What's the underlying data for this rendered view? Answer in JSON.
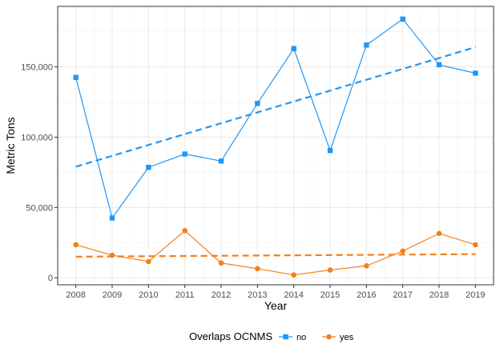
{
  "chart_data": {
    "type": "line",
    "x": [
      2008,
      2009,
      2010,
      2011,
      2012,
      2013,
      2014,
      2015,
      2016,
      2017,
      2018,
      2019
    ],
    "xlabel": "Year",
    "ylabel": "Metric Tons",
    "xlim": [
      2007.5,
      2019.5
    ],
    "ylim": [
      -5000,
      193000
    ],
    "yticks": [
      0,
      50000,
      100000,
      150000
    ],
    "ytick_labels": [
      "0",
      "50,000",
      "100,000",
      "150,000"
    ],
    "xtick_labels": [
      "2008",
      "2009",
      "2010",
      "2011",
      "2012",
      "2013",
      "2014",
      "2015",
      "2016",
      "2017",
      "2018",
      "2019"
    ],
    "grid": true,
    "legend": {
      "title": "Overlaps OCNMS",
      "position": "bottom",
      "entries": [
        "no",
        "yes"
      ]
    },
    "series": [
      {
        "name": "no",
        "color": "#2196F3",
        "marker": "square",
        "values": [
          142500,
          42500,
          78500,
          88000,
          83000,
          124000,
          163000,
          90500,
          165500,
          184000,
          151500,
          145500
        ],
        "trend": [
          79000,
          164000
        ]
      },
      {
        "name": "yes",
        "color": "#F47F17",
        "marker": "circle",
        "values": [
          23500,
          16000,
          11500,
          33500,
          10500,
          6500,
          2000,
          5500,
          8500,
          19000,
          31500,
          23500
        ],
        "trend": [
          15000,
          16800
        ]
      }
    ]
  }
}
